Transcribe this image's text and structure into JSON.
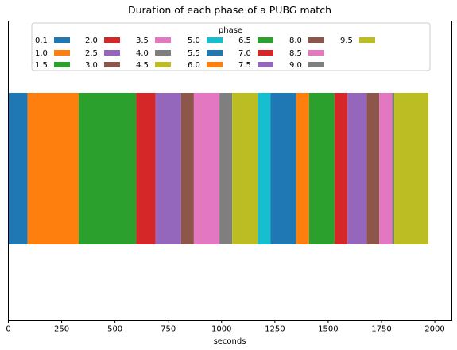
{
  "chart_data": {
    "type": "bar",
    "orientation": "horizontal-stacked",
    "title": "Duration of each phase of a PUBG match",
    "xlabel": "seconds",
    "ylabel": "",
    "xlim": [
      0,
      2080
    ],
    "xticks": [
      "0",
      "250",
      "500",
      "750",
      "1000",
      "1250",
      "1500",
      "1750",
      "2000"
    ],
    "xtick_values": [
      0,
      250,
      500,
      750,
      1000,
      1250,
      1500,
      1750,
      2000
    ],
    "grid": false,
    "legend": {
      "title": "phase",
      "placement": "top-center",
      "columns": 8
    },
    "series": [
      {
        "name": "0.1",
        "value": 90,
        "color": "#1f77b4"
      },
      {
        "name": "1.0",
        "value": 240,
        "color": "#ff7f0e"
      },
      {
        "name": "1.5",
        "value": 270,
        "color": "#2ca02c"
      },
      {
        "name": "2.0",
        "value": 90,
        "color": "#d62728"
      },
      {
        "name": "2.5",
        "value": 120,
        "color": "#9467bd"
      },
      {
        "name": "3.0",
        "value": 60,
        "color": "#8c564b"
      },
      {
        "name": "3.5",
        "value": 120,
        "color": "#e377c2"
      },
      {
        "name": "4.0",
        "value": 60,
        "color": "#7f7f7f"
      },
      {
        "name": "4.5",
        "value": 120,
        "color": "#bcbd22"
      },
      {
        "name": "5.0",
        "value": 60,
        "color": "#17becf"
      },
      {
        "name": "5.5",
        "value": 120,
        "color": "#1f77b4"
      },
      {
        "name": "6.0",
        "value": 60,
        "color": "#ff7f0e"
      },
      {
        "name": "6.5",
        "value": 120,
        "color": "#2ca02c"
      },
      {
        "name": "7.0",
        "value": 60,
        "color": "#d62728"
      },
      {
        "name": "7.5",
        "value": 90,
        "color": "#9467bd"
      },
      {
        "name": "8.0",
        "value": 60,
        "color": "#8c564b"
      },
      {
        "name": "8.5",
        "value": 60,
        "color": "#e377c2"
      },
      {
        "name": "9.0",
        "value": 10,
        "color": "#7f7f7f"
      },
      {
        "name": "9.5",
        "value": 160,
        "color": "#bcbd22"
      }
    ]
  }
}
